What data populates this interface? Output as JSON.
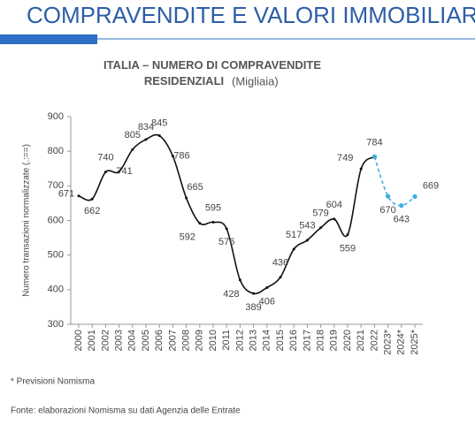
{
  "header": {
    "title": "COMPRAVENDITE E VALORI IMMOBILIARI"
  },
  "chart_data": {
    "type": "line",
    "title": "ITALIA – NUMERO DI COMPRAVENDITE RESIDENZIALI",
    "subtitle": "(Migliaia)",
    "y_label": "Numero transazioni normalizzate (.:==)",
    "categories": [
      "2000",
      "2001",
      "2002",
      "2003",
      "2004",
      "2005",
      "2006",
      "2007",
      "2008",
      "2009",
      "2010",
      "2011",
      "2012",
      "2013",
      "2014",
      "2015",
      "2016",
      "2017",
      "2018",
      "2019",
      "2020",
      "2021",
      "2022",
      "2023*",
      "2024*",
      "2025*"
    ],
    "series": [
      {
        "color": "#111111",
        "dashed": false,
        "values": [
          671,
          662,
          740,
          741,
          805,
          834,
          845,
          786,
          665,
          592,
          595,
          576,
          428,
          389,
          406,
          436,
          517,
          543,
          579,
          604,
          559,
          749,
          784,
          null,
          null,
          null
        ]
      },
      {
        "color": "#3bb0e0",
        "dashed": true,
        "values": [
          null,
          null,
          null,
          null,
          null,
          null,
          null,
          null,
          null,
          null,
          null,
          null,
          null,
          null,
          null,
          null,
          null,
          null,
          null,
          null,
          null,
          null,
          784,
          670,
          643,
          669
        ]
      }
    ],
    "ylim": [
      300,
      900
    ],
    "yticks": [
      300,
      400,
      500,
      600,
      700,
      800,
      900
    ],
    "footnote": "* Previsioni Nomisma",
    "source": "Fonte: elaborazioni Nomisma su dati Agenzia delle Entrate"
  }
}
